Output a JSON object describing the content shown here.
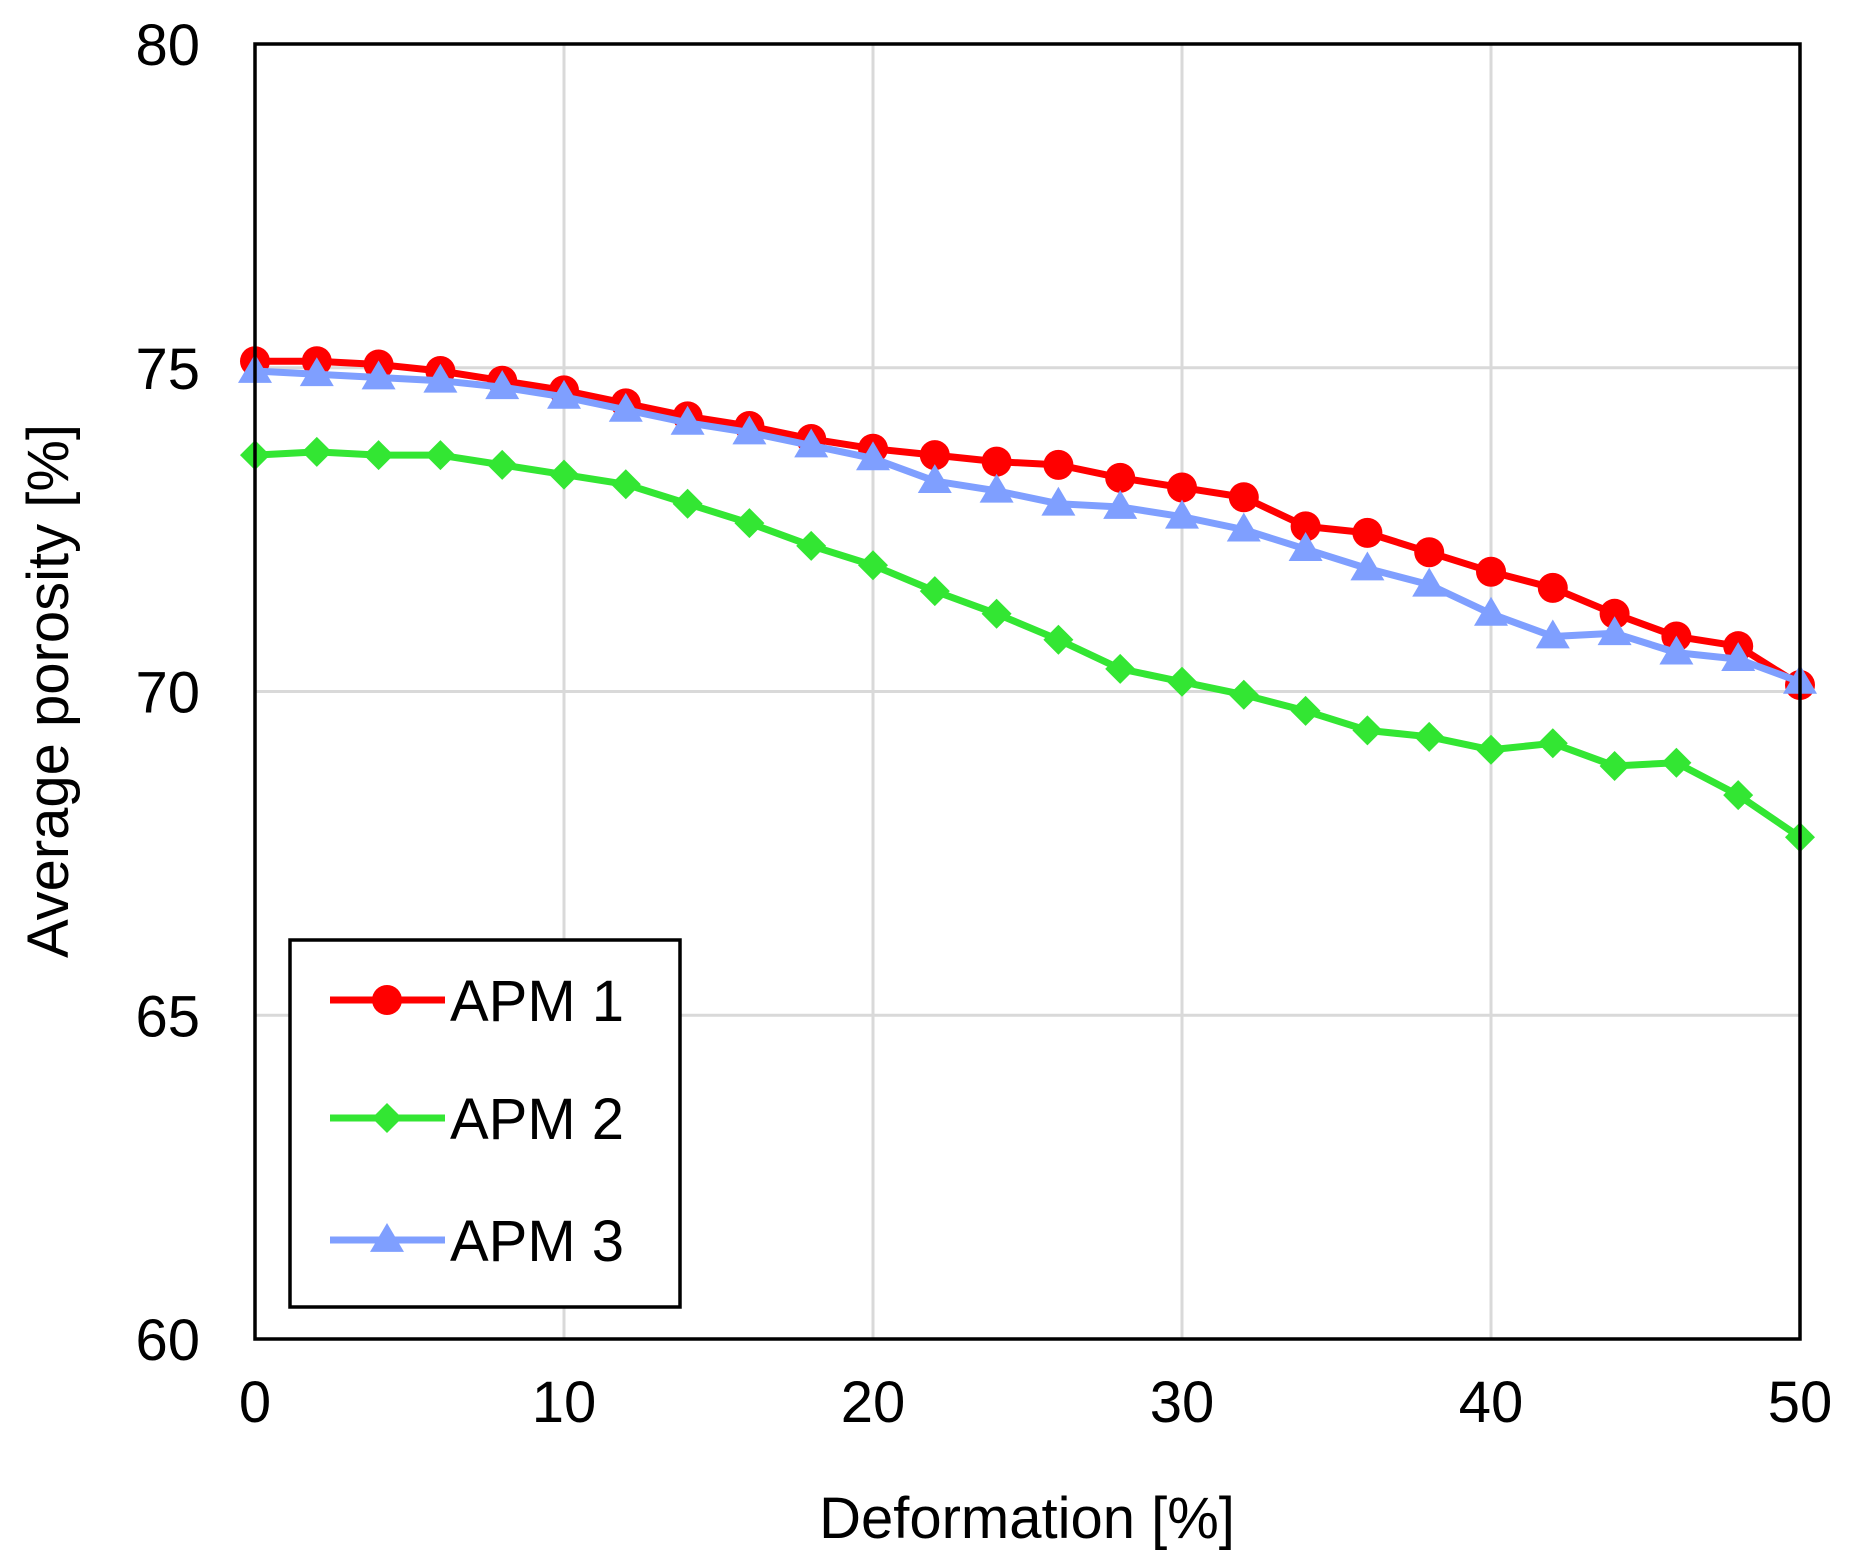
{
  "chart_data": {
    "type": "line",
    "title": "",
    "xlabel": "Deformation [%]",
    "ylabel": "Average porosity [%]",
    "xlim": [
      0,
      50
    ],
    "ylim": [
      60,
      80
    ],
    "xticks": [
      0,
      10,
      20,
      30,
      40,
      50
    ],
    "yticks": [
      60,
      65,
      70,
      75,
      80
    ],
    "x_tick_labels": [
      "0",
      "10",
      "20",
      "30",
      "40",
      "50"
    ],
    "y_tick_labels": [
      "60",
      "65",
      "70",
      "75",
      "80"
    ],
    "grid": true,
    "legend_position": "bottom-left",
    "x": [
      0,
      2,
      4,
      6,
      8,
      10,
      12,
      14,
      16,
      18,
      20,
      22,
      24,
      26,
      28,
      30,
      32,
      34,
      36,
      38,
      40,
      42,
      44,
      46,
      48,
      50
    ],
    "series": [
      {
        "name": "APM 1",
        "color": "#ff0000",
        "marker": "circle",
        "values": [
          75.1,
          75.1,
          75.05,
          74.95,
          74.8,
          74.65,
          74.45,
          74.25,
          74.1,
          73.9,
          73.75,
          73.65,
          73.55,
          73.5,
          73.3,
          73.15,
          73.0,
          72.55,
          72.45,
          72.15,
          71.85,
          71.6,
          71.2,
          70.85,
          70.7,
          70.1
        ],
        "legend_label": "APM 1"
      },
      {
        "name": "APM 2",
        "color": "#33e633",
        "marker": "diamond",
        "values": [
          73.65,
          73.7,
          73.65,
          73.65,
          73.5,
          73.35,
          73.2,
          72.9,
          72.6,
          72.25,
          71.95,
          71.55,
          71.2,
          70.8,
          70.35,
          70.15,
          69.95,
          69.7,
          69.4,
          69.3,
          69.1,
          69.2,
          68.85,
          68.9,
          68.4,
          67.75
        ],
        "legend_label": "APM 2"
      },
      {
        "name": "APM 3",
        "color": "#7f9fff",
        "marker": "triangle",
        "values": [
          74.95,
          74.9,
          74.85,
          74.8,
          74.7,
          74.55,
          74.35,
          74.15,
          74.0,
          73.8,
          73.6,
          73.25,
          73.1,
          72.9,
          72.85,
          72.7,
          72.5,
          72.2,
          71.9,
          71.65,
          71.2,
          70.85,
          70.9,
          70.6,
          70.5,
          70.15
        ],
        "legend_label": "APM 3"
      }
    ]
  }
}
